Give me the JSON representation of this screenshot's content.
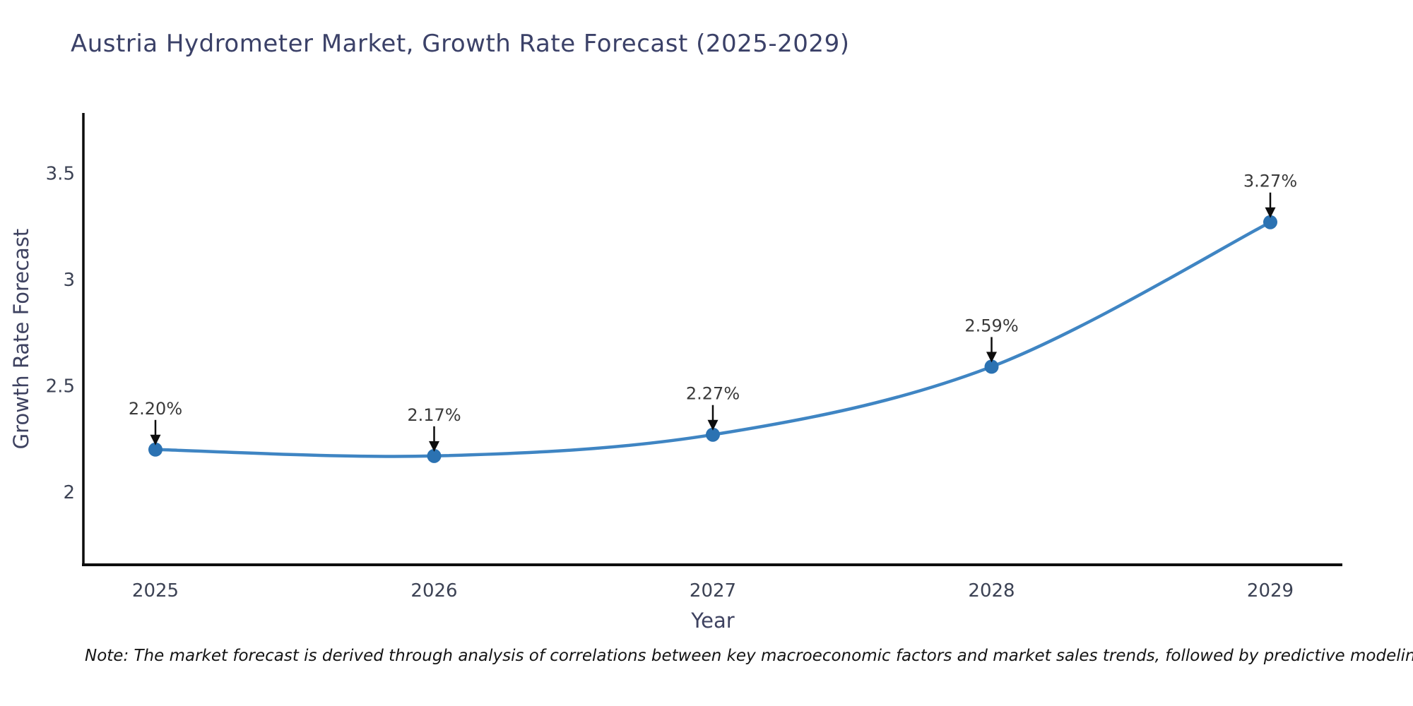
{
  "title": "Austria Hydrometer Market, Growth Rate Forecast (2025-2029)",
  "note": "Note: The market forecast is derived through analysis of correlations between key macroeconomic factors and market sales trends, followed by predictive modeling to project future sales",
  "chart_data": {
    "type": "line",
    "title": "Austria Hydrometer Market, Growth Rate Forecast (2025-2029)",
    "xlabel": "Year",
    "ylabel": "Growth Rate Forecast",
    "x": [
      2025,
      2026,
      2027,
      2028,
      2029
    ],
    "x_tick_labels": [
      "2025",
      "2026",
      "2027",
      "2028",
      "2029"
    ],
    "values": [
      2.2,
      2.17,
      2.27,
      2.59,
      3.27
    ],
    "point_labels": [
      "2.20%",
      "2.17%",
      "2.27%",
      "2.59%",
      "3.27%"
    ],
    "yticks": [
      2,
      2.5,
      3,
      3.5
    ],
    "ytick_labels": [
      "2",
      "2.5",
      "3",
      "3.5"
    ],
    "ylim": [
      1.66,
      3.79
    ],
    "xlim": [
      2024.74,
      2029.26
    ],
    "grid": false,
    "legend": "none",
    "smooth_curve": true,
    "annotations_have_arrows": true
  },
  "colors": {
    "background": "#ffffff",
    "line": "#3f85c3",
    "marker": "#2b72b2",
    "spine": "#0d0d0d",
    "arrow": "#0d0d0d",
    "title": "#3b4168",
    "axis_label": "#3e4260",
    "tick_label": "#3c4254",
    "point_label": "#3a3a3a",
    "note": "#141414"
  }
}
